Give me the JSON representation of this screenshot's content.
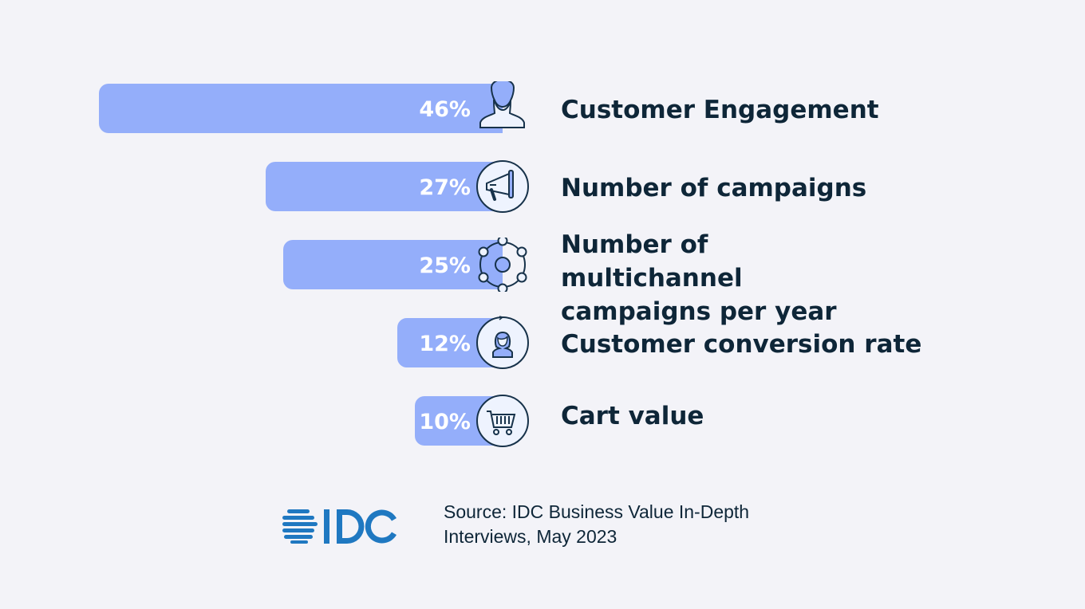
{
  "chart_data": {
    "type": "bar",
    "orientation": "horizontal",
    "categories": [
      "Customer Engagement",
      "Number of campaigns",
      "Number of multichannel campaigns per year",
      "Customer conversion rate",
      "Cart value"
    ],
    "values": [
      46,
      27,
      25,
      12,
      10
    ],
    "value_labels": [
      "46%",
      "27%",
      "25%",
      "12%",
      "10%"
    ],
    "icons": [
      "person-icon",
      "megaphone-icon",
      "network-icon",
      "customer-cycle-icon",
      "shopping-cart-icon"
    ],
    "unit": "%",
    "grid": false,
    "bar_color": "#94aefa"
  },
  "footer": {
    "logo_text": "IDC",
    "logo_color": "#1f78c1",
    "source": "Source: IDC Business Value In-Depth Interviews, May 2023"
  }
}
